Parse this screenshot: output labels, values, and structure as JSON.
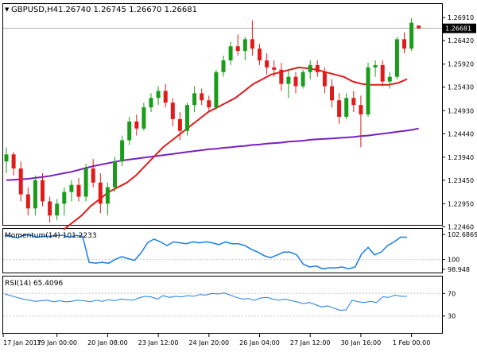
{
  "header": {
    "marker": "▼",
    "symbol": "GBPUSD,H4",
    "ohlc": "1.26740 1.26745 1.26670 1.26681"
  },
  "colors": {
    "bull": "#1a9c1a",
    "bear": "#e01b1b",
    "ma_fast": "#e01b1b",
    "ma_slow": "#7a1fc2",
    "momentum": "#1a7ee6",
    "rsi": "#1a7ee6",
    "grid": "#c8c8c8",
    "price_tag_bg": "#000000",
    "price_tag_fg": "#ffffff"
  },
  "chart_data": [
    {
      "type": "candlestick",
      "title": "GBPUSD,H4",
      "ylim": [
        1.225,
        1.272
      ],
      "yticks": [
        "1.26910",
        "1.26420",
        "1.25920",
        "1.25430",
        "1.24930",
        "1.24440",
        "1.23940",
        "1.23450",
        "1.22950",
        "1.22460"
      ],
      "current_price": "1.26681",
      "xticks": [
        "17 Jan 2017",
        "19 Jan 00:00",
        "20 Jan 08:00",
        "23 Jan 12:00",
        "24 Jan 20:00",
        "26 Jan 04:00",
        "27 Jan 12:00",
        "30 Jan 16:00",
        "1 Feb 00:00"
      ],
      "candles": [
        [
          1.2385,
          1.2415,
          1.236,
          1.24
        ],
        [
          1.24,
          1.2405,
          1.2355,
          1.237
        ],
        [
          1.237,
          1.2385,
          1.23,
          1.2315
        ],
        [
          1.2315,
          1.233,
          1.227,
          1.2285
        ],
        [
          1.2285,
          1.2355,
          1.227,
          1.2345
        ],
        [
          1.2345,
          1.236,
          1.229,
          1.23
        ],
        [
          1.23,
          1.231,
          1.2255,
          1.227
        ],
        [
          1.227,
          1.2305,
          1.226,
          1.2295
        ],
        [
          1.2295,
          1.233,
          1.227,
          1.232
        ],
        [
          1.232,
          1.2345,
          1.23,
          1.2335
        ],
        [
          1.2335,
          1.235,
          1.23,
          1.231
        ],
        [
          1.231,
          1.238,
          1.23,
          1.237
        ],
        [
          1.237,
          1.239,
          1.233,
          1.234
        ],
        [
          1.234,
          1.236,
          1.2275,
          1.2295
        ],
        [
          1.2295,
          1.234,
          1.227,
          1.233
        ],
        [
          1.233,
          1.2395,
          1.232,
          1.2385
        ],
        [
          1.2385,
          1.244,
          1.2375,
          1.243
        ],
        [
          1.243,
          1.248,
          1.242,
          1.247
        ],
        [
          1.247,
          1.2485,
          1.244,
          1.2455
        ],
        [
          1.2455,
          1.251,
          1.245,
          1.25
        ],
        [
          1.25,
          1.253,
          1.249,
          1.252
        ],
        [
          1.252,
          1.2545,
          1.2505,
          1.2535
        ],
        [
          1.2535,
          1.255,
          1.25,
          1.251
        ],
        [
          1.251,
          1.252,
          1.246,
          1.2475
        ],
        [
          1.2475,
          1.249,
          1.243,
          1.245
        ],
        [
          1.245,
          1.251,
          1.244,
          1.2505
        ],
        [
          1.2505,
          1.2545,
          1.249,
          1.253
        ],
        [
          1.253,
          1.254,
          1.2505,
          1.2515
        ],
        [
          1.2515,
          1.2525,
          1.249,
          1.25
        ],
        [
          1.25,
          1.258,
          1.2495,
          1.2575
        ],
        [
          1.2575,
          1.261,
          1.2565,
          1.26
        ],
        [
          1.26,
          1.264,
          1.259,
          1.263
        ],
        [
          1.263,
          1.2655,
          1.261,
          1.262
        ],
        [
          1.262,
          1.265,
          1.26,
          1.2645
        ],
        [
          1.2645,
          1.2685,
          1.261,
          1.2625
        ],
        [
          1.2625,
          1.2635,
          1.259,
          1.26
        ],
        [
          1.26,
          1.2615,
          1.257,
          1.2585
        ],
        [
          1.2585,
          1.26,
          1.2565,
          1.258
        ],
        [
          1.258,
          1.2595,
          1.2535,
          1.255
        ],
        [
          1.255,
          1.258,
          1.252,
          1.2565
        ],
        [
          1.2565,
          1.2575,
          1.253,
          1.2545
        ],
        [
          1.2545,
          1.258,
          1.254,
          1.2575
        ],
        [
          1.2575,
          1.26,
          1.256,
          1.259
        ],
        [
          1.259,
          1.26,
          1.2565,
          1.2575
        ],
        [
          1.2575,
          1.2585,
          1.253,
          1.2545
        ],
        [
          1.2545,
          1.256,
          1.25,
          1.2515
        ],
        [
          1.2515,
          1.253,
          1.2465,
          1.248
        ],
        [
          1.248,
          1.253,
          1.2475,
          1.252
        ],
        [
          1.252,
          1.2535,
          1.249,
          1.2505
        ],
        [
          1.2505,
          1.2525,
          1.2415,
          1.2485
        ],
        [
          1.2485,
          1.2595,
          1.248,
          1.2585
        ],
        [
          1.2585,
          1.26,
          1.2565,
          1.259
        ],
        [
          1.259,
          1.26,
          1.2545,
          1.2555
        ],
        [
          1.2555,
          1.2575,
          1.254,
          1.2565
        ],
        [
          1.2565,
          1.265,
          1.256,
          1.2645
        ],
        [
          1.2645,
          1.266,
          1.2615,
          1.2625
        ],
        [
          1.2625,
          1.269,
          1.262,
          1.268
        ],
        [
          1.2674,
          1.26745,
          1.2667,
          1.26681
        ]
      ],
      "ma_fast": [
        1.224,
        1.2255,
        1.227,
        1.229,
        1.2305,
        1.232,
        1.233,
        1.234,
        1.2355,
        1.2375,
        1.2395,
        1.2415,
        1.243,
        1.2445,
        1.246,
        1.2475,
        1.249,
        1.25,
        1.251,
        1.252,
        1.2535,
        1.255,
        1.256,
        1.257,
        1.2575,
        1.258,
        1.2585,
        1.2583,
        1.258,
        1.2575,
        1.257,
        1.2565,
        1.2555,
        1.255,
        1.2548,
        1.2548,
        1.2548,
        1.2552,
        1.256
      ],
      "ma_fast_start": 12,
      "ma_slow": [
        1.2345,
        1.2346,
        1.2347,
        1.2348,
        1.235,
        1.2352,
        1.2354,
        1.2357,
        1.236,
        1.2363,
        1.2367,
        1.2371,
        1.2375,
        1.2378,
        1.2381,
        1.2384,
        1.2387,
        1.2389,
        1.2391,
        1.2393,
        1.2395,
        1.2397,
        1.2399,
        1.2401,
        1.2403,
        1.2405,
        1.2407,
        1.2409,
        1.2411,
        1.2412,
        1.2414,
        1.2415,
        1.2417,
        1.2418,
        1.242,
        1.2421,
        1.2423,
        1.2424,
        1.2425,
        1.2427,
        1.2428,
        1.2429,
        1.2431,
        1.2432,
        1.2433,
        1.2434,
        1.2435,
        1.2436,
        1.2437,
        1.2439,
        1.244,
        1.2442,
        1.2444,
        1.2446,
        1.2448,
        1.245,
        1.2452,
        1.2455
      ]
    },
    {
      "type": "line",
      "title": "Momentum(14) 101.2233",
      "ylim": [
        98.6,
        103.3
      ],
      "yticks": [
        "102.6869",
        "100",
        "98.948"
      ],
      "level": 100,
      "series": [
        {
          "values": [
            102.6,
            102.5,
            102.3,
            102.7,
            102.6,
            102.4,
            102.5,
            102.5,
            102.6,
            102.6,
            102.4,
            102.6,
            102.5,
            99.7,
            99.6,
            99.7,
            99.6,
            100.0,
            100.3,
            100.1,
            99.9,
            100.7,
            101.8,
            102.2,
            101.9,
            101.5,
            101.9,
            101.8,
            101.7,
            101.9,
            101.8,
            101.9,
            101.8,
            101.6,
            101.9,
            101.7,
            101.7,
            101.5,
            101.1,
            100.8,
            100.4,
            100.2,
            100.5,
            100.8,
            100.8,
            100.5,
            99.5,
            99.2,
            99.3,
            99.0,
            99.1,
            99.1,
            99.2,
            99.0,
            99.2,
            100.6,
            101.3,
            100.5
          ],
          "tail": [
            100.8,
            101.5,
            101.9,
            102.4,
            102.4
          ]
        }
      ]
    },
    {
      "type": "line",
      "title": "RSI(14) 65.4096",
      "ylim": [
        0,
        100
      ],
      "yticks": [
        "70",
        "30"
      ],
      "levels": [
        70,
        30
      ],
      "series": [
        {
          "values": [
            69,
            66,
            63,
            60,
            58,
            56,
            57,
            58,
            55,
            57,
            55,
            56,
            58,
            57,
            55,
            58,
            56,
            59,
            57,
            60,
            59,
            58,
            62,
            65,
            64,
            60,
            66,
            63,
            65,
            64,
            66,
            65,
            68,
            67,
            70,
            69,
            71,
            67,
            63,
            60,
            61,
            58,
            62,
            63,
            60,
            58,
            60,
            57,
            55,
            52,
            54,
            50,
            46,
            48,
            44,
            40,
            41,
            58,
            55,
            54,
            56,
            54,
            64,
            63,
            67,
            65,
            65
          ]
        }
      ]
    }
  ]
}
